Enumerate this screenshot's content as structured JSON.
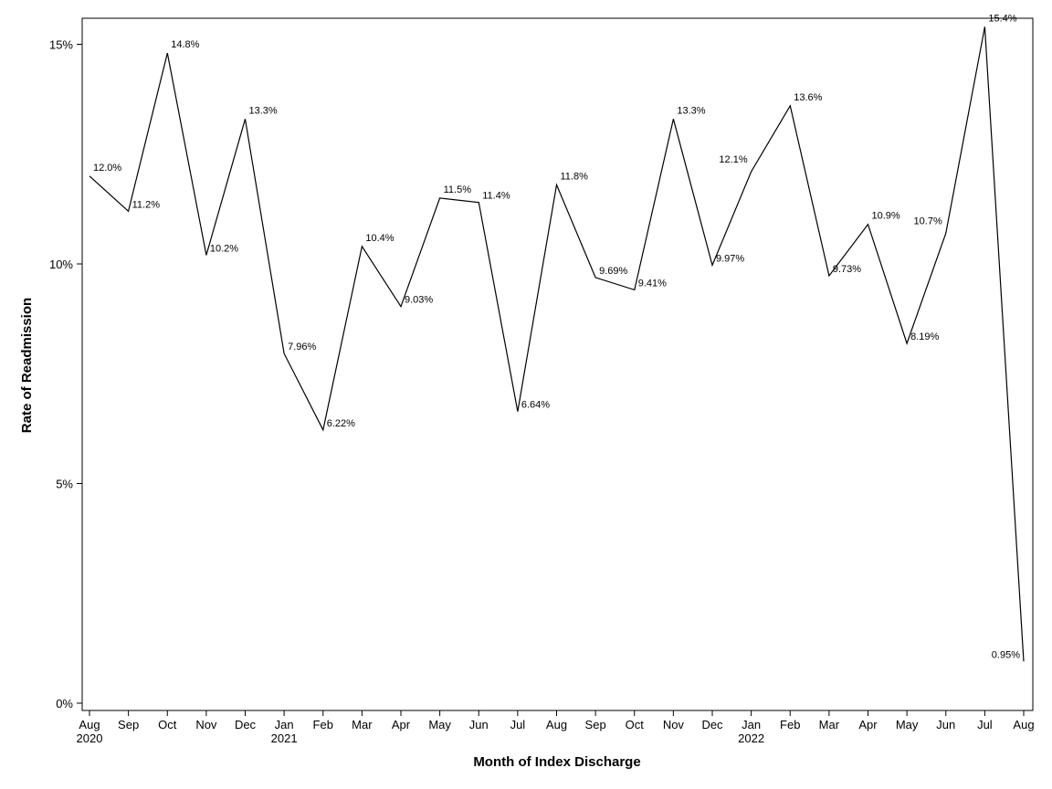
{
  "chart_data": {
    "type": "line",
    "title": "",
    "xlabel": "Month of Index Discharge",
    "ylabel": "Rate of Readmission",
    "ylim": [
      0,
      15.5
    ],
    "yticks": [
      {
        "value": 0,
        "label": "0%"
      },
      {
        "value": 5,
        "label": "5%"
      },
      {
        "value": 10,
        "label": "10%"
      },
      {
        "value": 15,
        "label": "15%"
      }
    ],
    "grid": false,
    "categories": [
      "Aug",
      "Sep",
      "Oct",
      "Nov",
      "Dec",
      "Jan",
      "Feb",
      "Mar",
      "Apr",
      "May",
      "Jun",
      "Jul",
      "Aug",
      "Sep",
      "Oct",
      "Nov",
      "Dec",
      "Jan",
      "Feb",
      "Mar",
      "Apr",
      "May",
      "Jun",
      "Jul",
      "Aug"
    ],
    "year_labels": [
      "2020",
      "",
      "",
      "",
      "",
      "2021",
      "",
      "",
      "",
      "",
      "",
      "",
      "",
      "",
      "",
      "",
      "",
      "2022",
      "",
      "",
      "",
      "",
      "",
      "",
      ""
    ],
    "series": [
      {
        "values": [
          12.0,
          11.2,
          14.8,
          10.2,
          13.3,
          7.96,
          6.22,
          10.4,
          9.03,
          11.5,
          11.4,
          6.64,
          11.8,
          9.69,
          9.41,
          13.3,
          9.97,
          12.1,
          13.6,
          9.73,
          10.9,
          8.19,
          10.7,
          15.4,
          0.95
        ],
        "labels": [
          "12.0%",
          "11.2%",
          "14.8%",
          "10.2%",
          "13.3%",
          "7.96%",
          "6.22%",
          "10.4%",
          "9.03%",
          "11.5%",
          "11.4%",
          "6.64%",
          "11.8%",
          "9.69%",
          "9.41%",
          "13.3%",
          "9.97%",
          "12.1%",
          "13.6%",
          "9.73%",
          "10.9%",
          "8.19%",
          "10.7%",
          "15.4%",
          "0.95%"
        ],
        "color": "#000000"
      }
    ]
  }
}
